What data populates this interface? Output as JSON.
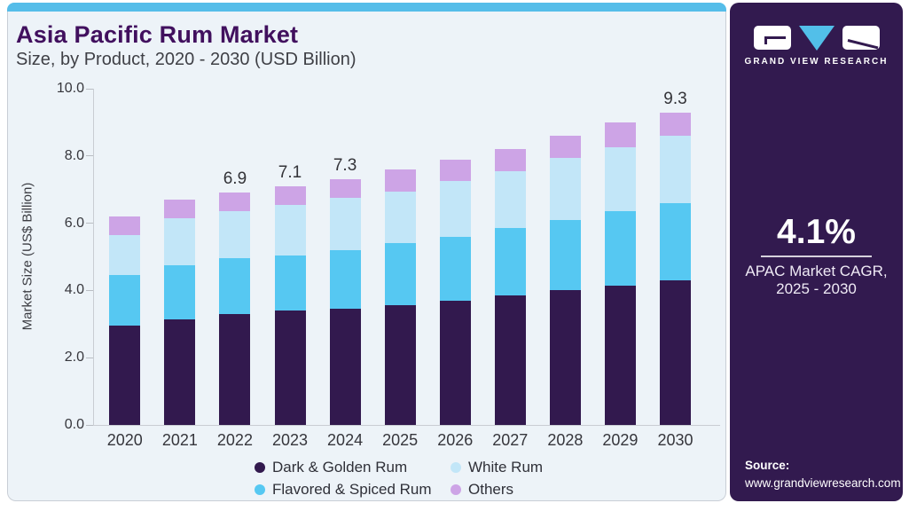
{
  "header": {
    "title": "Asia Pacific Rum Market",
    "subtitle": "Size, by Product, 2020 - 2030 (USD Billion)"
  },
  "chart_data": {
    "type": "bar",
    "stacked": true,
    "title": "Asia Pacific Rum Market Size, by Product, 2020 - 2030 (USD Billion)",
    "xlabel": "",
    "ylabel": "Market Size (US$ Billion)",
    "ylim": [
      0,
      10
    ],
    "yticks": [
      0.0,
      2.0,
      4.0,
      6.0,
      8.0,
      10.0
    ],
    "grid": false,
    "legend_position": "bottom",
    "categories": [
      "2020",
      "2021",
      "2022",
      "2023",
      "2024",
      "2025",
      "2026",
      "2027",
      "2028",
      "2029",
      "2030"
    ],
    "series": [
      {
        "name": "Dark & Golden Rum",
        "color": "#32194e",
        "values": [
          2.95,
          3.15,
          3.3,
          3.4,
          3.45,
          3.55,
          3.7,
          3.85,
          4.0,
          4.15,
          4.3
        ]
      },
      {
        "name": "Flavored & Spiced Rum",
        "color": "#56c8f2",
        "values": [
          1.5,
          1.6,
          1.65,
          1.65,
          1.75,
          1.85,
          1.9,
          2.0,
          2.1,
          2.2,
          2.3
        ]
      },
      {
        "name": "White Rum",
        "color": "#c2e6f8",
        "values": [
          1.2,
          1.4,
          1.4,
          1.5,
          1.55,
          1.55,
          1.65,
          1.7,
          1.85,
          1.9,
          2.0
        ]
      },
      {
        "name": "Others",
        "color": "#cda4e6",
        "values": [
          0.55,
          0.55,
          0.55,
          0.55,
          0.55,
          0.65,
          0.65,
          0.65,
          0.65,
          0.75,
          0.7
        ]
      }
    ],
    "totals": [
      6.2,
      6.7,
      6.9,
      7.1,
      7.3,
      7.6,
      7.9,
      8.2,
      8.6,
      9.0,
      9.3
    ],
    "total_labels": {
      "2022": "6.9",
      "2023": "7.1",
      "2024": "7.3",
      "2030": "9.3"
    }
  },
  "legend": {
    "items": [
      {
        "label": "Dark & Golden Rum",
        "color": "#32194e"
      },
      {
        "label": "White Rum",
        "color": "#c2e6f8"
      },
      {
        "label": "Flavored & Spiced Rum",
        "color": "#56c8f2"
      },
      {
        "label": "Others",
        "color": "#cda4e6"
      }
    ]
  },
  "sidebar": {
    "brand": "GRAND VIEW RESEARCH",
    "cagr_value": "4.1%",
    "cagr_label_line1": "APAC Market CAGR,",
    "cagr_label_line2": "2025 - 2030",
    "source_label": "Source:",
    "source_url": "www.grandviewresearch.com"
  },
  "colors": {
    "top_strip": "#55bde9",
    "card_background": "#edf3f8",
    "card_border": "#c9ced6",
    "sidebar_background": "#321a4f",
    "logo_triangle_blue": "#52bfe9",
    "title_purple": "#41105e",
    "axis_line": "#c9cdd3",
    "axis_text": "#36363c"
  }
}
